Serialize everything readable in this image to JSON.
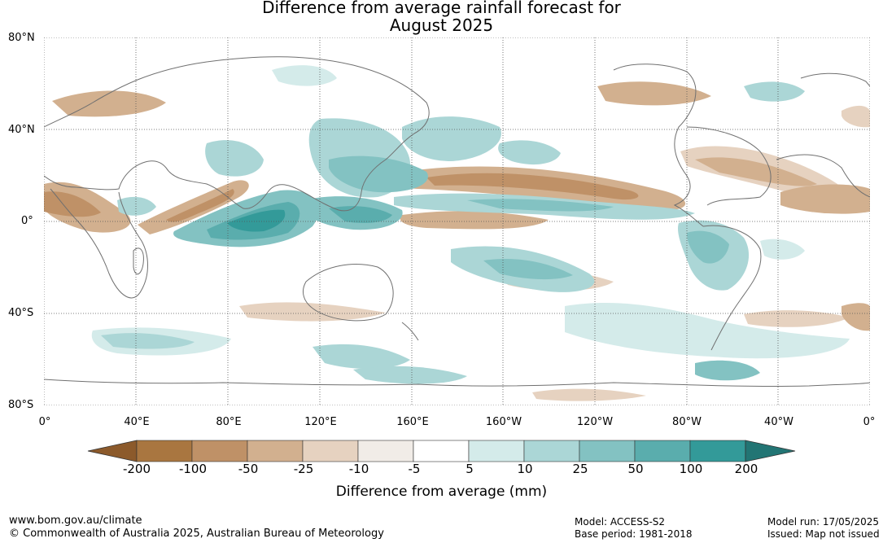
{
  "title": {
    "line1": "Difference from average rainfall forecast for",
    "line2": "August 2025"
  },
  "axes": {
    "lat_labels": [
      "80°N",
      "40°N",
      "0°",
      "40°S",
      "80°S"
    ],
    "lon_labels": [
      "0°",
      "40°E",
      "80°E",
      "120°E",
      "160°E",
      "160°W",
      "120°W",
      "80°W",
      "40°W",
      "0°"
    ]
  },
  "colorbar": {
    "title": "Difference from average (mm)",
    "tick_labels": [
      "-200",
      "-100",
      "-50",
      "-25",
      "-10",
      "-5",
      "5",
      "10",
      "25",
      "50",
      "100",
      "200"
    ],
    "colors": [
      "#8c5a2b",
      "#a97640",
      "#bf9167",
      "#d2b08f",
      "#e6d2c0",
      "#f1ece7",
      "#ffffff",
      "#d4ebea",
      "#abd6d6",
      "#83c2c2",
      "#5aadad",
      "#339a99",
      "#227574"
    ]
  },
  "footer": {
    "website": "www.bom.gov.au/climate",
    "copyright": "© Commonwealth of Australia 2025, Australian Bureau of Meteorology",
    "model": "Model: ACCESS-S2",
    "base_period": "Base period: 1981-2018",
    "model_run": "Model run: 17/05/2025",
    "issued": "Issued: Map not issued"
  }
}
